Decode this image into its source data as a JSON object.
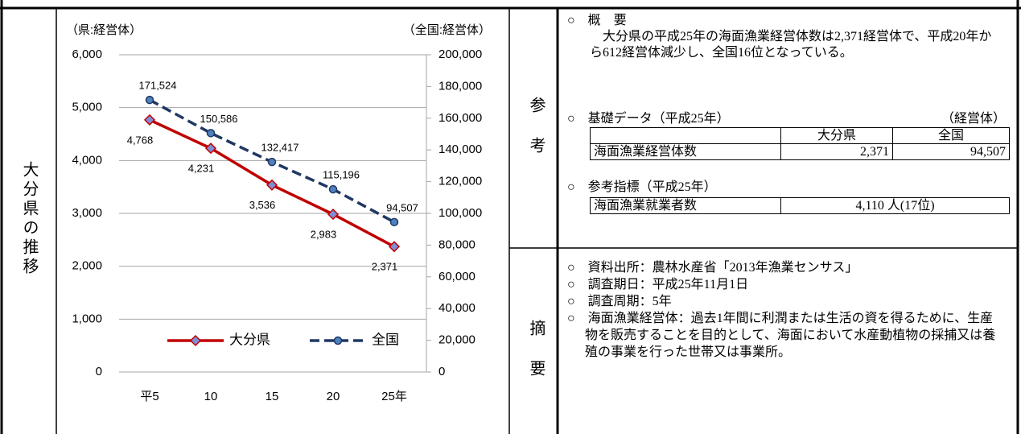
{
  "side_label": "大分県の推移",
  "chart_data": {
    "type": "line",
    "y_label": "（県:経営体）",
    "y2_label": "（全国:経営体）",
    "categories": [
      "平5",
      "10",
      "15",
      "20",
      "25年"
    ],
    "series": [
      {
        "name": "大分県",
        "color": "#c00000",
        "marker": "diamond",
        "marker_color": "#7f8fd6",
        "dashed": false,
        "values": [
          4768,
          4231,
          3536,
          2983,
          2371
        ],
        "value_labels": [
          "4,768",
          "4,231",
          "3,536",
          "2,983",
          "2,371"
        ]
      },
      {
        "name": "全国",
        "color": "#1f3864",
        "marker": "circle",
        "marker_color": "#4f81bd",
        "dashed": true,
        "axis": "y2",
        "values": [
          171524,
          150586,
          132417,
          115196,
          94507
        ],
        "value_labels": [
          "171,524",
          "150,586",
          "132,417",
          "115,196",
          "94,507"
        ]
      }
    ],
    "ylim": [
      0,
      6000
    ],
    "yticks": [
      0,
      {
        "value": 1000,
        "label": "1,000"
      },
      {
        "value": 2000,
        "label": "2,000"
      },
      {
        "value": 3000,
        "label": "3,000"
      },
      {
        "value": 4000,
        "label": "4,000"
      },
      {
        "value": 5000,
        "label": "5,000"
      },
      {
        "value": 6000,
        "label": "6,000"
      }
    ],
    "y2lim": [
      0,
      200000
    ],
    "y2ticks": [
      0,
      {
        "value": 20000,
        "label": "20,000"
      },
      {
        "value": 40000,
        "label": "40,000"
      },
      {
        "value": 60000,
        "label": "60,000"
      },
      {
        "value": 80000,
        "label": "80,000"
      },
      {
        "value": 100000,
        "label": "100,000"
      },
      {
        "value": 120000,
        "label": "120,000"
      },
      {
        "value": 140000,
        "label": "140,000"
      },
      {
        "value": 160000,
        "label": "160,000"
      },
      {
        "value": 180000,
        "label": "180,000"
      },
      {
        "value": 200000,
        "label": "200,000"
      }
    ],
    "grid": true,
    "legend": "bottom"
  },
  "reference": {
    "label": "参考",
    "overview_heading": "○　概　要",
    "overview_text": "大分県の平成25年の海面漁業経営体数は2,371経営体で、平成20年から612経営体減少し、全国16位となっている。",
    "basic_heading": "○　基礎データ（平成25年）",
    "basic_unit": "（経営体）",
    "basic_table": {
      "header": [
        "大分県",
        "全国"
      ],
      "rows": [
        [
          "海面漁業経営体数",
          "2,371",
          "94,507"
        ]
      ]
    },
    "indicator_heading": "○　参考指標（平成25年）",
    "indicator_table": {
      "rows": [
        [
          "海面漁業就業者数",
          "4,110 人(17位)"
        ]
      ]
    }
  },
  "summary": {
    "label": "摘要",
    "items": [
      "○　資料出所：農林水産省「2013年漁業センサス」",
      "○　調査期日：平成25年11月1日",
      "○　調査周期：5年",
      "○　海面漁業経営体：過去1年間に利潤または生活の資を得るために、生産物を販売することを目的として、海面において水産動植物の採捕又は養殖の事業を行った世帯又は事業所。"
    ]
  }
}
